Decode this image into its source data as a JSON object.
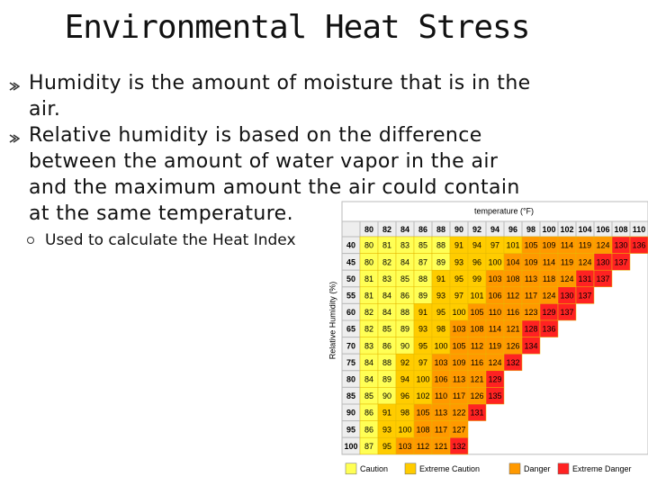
{
  "header": {
    "title": "Environmental Heat Stress"
  },
  "bullets": [
    {
      "text": "Humidity is the amount of moisture that is in the air."
    },
    {
      "text": "Relative humidity is based on the difference between the amount of water vapor in the air and the maximum amount the air could contain at the same temperature.",
      "sub": [
        "Used to calculate the Heat Index"
      ]
    }
  ],
  "table": {
    "column_title": "temperature (°F)",
    "row_title": "Relative Humidity (%)",
    "temperatures": [
      80,
      82,
      84,
      86,
      88,
      90,
      92,
      94,
      96,
      98,
      100,
      102,
      104,
      106,
      108,
      110
    ],
    "rows": [
      {
        "humidity": 40,
        "values": [
          80,
          81,
          83,
          85,
          88,
          91,
          94,
          97,
          101,
          105,
          109,
          114,
          119,
          124,
          130,
          136
        ],
        "colors": [
          "#ff5",
          "#ff5",
          "#ff5",
          "#ff5",
          "#ff5",
          "#fc0",
          "#fc0",
          "#fc0",
          "#fc0",
          "#f90",
          "#f90",
          "#f90",
          "#f90",
          "#f90",
          "#f22",
          "#f22"
        ]
      },
      {
        "humidity": 45,
        "values": [
          80,
          82,
          84,
          87,
          89,
          93,
          96,
          100,
          104,
          109,
          114,
          119,
          124,
          130,
          137
        ],
        "colors": [
          "#ff5",
          "#ff5",
          "#ff5",
          "#ff5",
          "#ff5",
          "#fc0",
          "#fc0",
          "#fc0",
          "#f90",
          "#f90",
          "#f90",
          "#f90",
          "#f90",
          "#f22",
          "#f22"
        ]
      },
      {
        "humidity": 50,
        "values": [
          81,
          83,
          85,
          88,
          91,
          95,
          99,
          103,
          108,
          113,
          118,
          124,
          131,
          137
        ],
        "colors": [
          "#ff5",
          "#ff5",
          "#ff5",
          "#ff5",
          "#fc0",
          "#fc0",
          "#fc0",
          "#f90",
          "#f90",
          "#f90",
          "#f90",
          "#f90",
          "#f22",
          "#f22"
        ]
      },
      {
        "humidity": 55,
        "values": [
          81,
          84,
          86,
          89,
          93,
          97,
          101,
          106,
          112,
          117,
          124,
          130,
          137
        ],
        "colors": [
          "#ff5",
          "#ff5",
          "#ff5",
          "#ff5",
          "#fc0",
          "#fc0",
          "#fc0",
          "#f90",
          "#f90",
          "#f90",
          "#f90",
          "#f22",
          "#f22"
        ]
      },
      {
        "humidity": 60,
        "values": [
          82,
          84,
          88,
          91,
          95,
          100,
          105,
          110,
          116,
          123,
          129,
          137
        ],
        "colors": [
          "#ff5",
          "#ff5",
          "#ff5",
          "#fc0",
          "#fc0",
          "#fc0",
          "#f90",
          "#f90",
          "#f90",
          "#f90",
          "#f22",
          "#f22"
        ]
      },
      {
        "humidity": 65,
        "values": [
          82,
          85,
          89,
          93,
          98,
          103,
          108,
          114,
          121,
          128,
          136
        ],
        "colors": [
          "#ff5",
          "#ff5",
          "#ff5",
          "#fc0",
          "#fc0",
          "#f90",
          "#f90",
          "#f90",
          "#f90",
          "#f22",
          "#f22"
        ]
      },
      {
        "humidity": 70,
        "values": [
          83,
          86,
          90,
          95,
          100,
          105,
          112,
          119,
          126,
          134
        ],
        "colors": [
          "#ff5",
          "#ff5",
          "#ff5",
          "#fc0",
          "#fc0",
          "#f90",
          "#f90",
          "#f90",
          "#f90",
          "#f22"
        ]
      },
      {
        "humidity": 75,
        "values": [
          84,
          88,
          92,
          97,
          103,
          109,
          116,
          124,
          132
        ],
        "colors": [
          "#ff5",
          "#ff5",
          "#fc0",
          "#fc0",
          "#f90",
          "#f90",
          "#f90",
          "#f90",
          "#f22"
        ]
      },
      {
        "humidity": 80,
        "values": [
          84,
          89,
          94,
          100,
          106,
          113,
          121,
          129
        ],
        "colors": [
          "#ff5",
          "#ff5",
          "#fc0",
          "#fc0",
          "#f90",
          "#f90",
          "#f90",
          "#f22"
        ]
      },
      {
        "humidity": 85,
        "values": [
          85,
          90,
          96,
          102,
          110,
          117,
          126,
          135
        ],
        "colors": [
          "#ff5",
          "#ff5",
          "#fc0",
          "#fc0",
          "#f90",
          "#f90",
          "#f90",
          "#f22"
        ]
      },
      {
        "humidity": 90,
        "values": [
          86,
          91,
          98,
          105,
          113,
          122,
          131
        ],
        "colors": [
          "#ff5",
          "#fc0",
          "#fc0",
          "#f90",
          "#f90",
          "#f90",
          "#f22"
        ]
      },
      {
        "humidity": 95,
        "values": [
          86,
          93,
          100,
          108,
          117,
          127
        ],
        "colors": [
          "#ff5",
          "#fc0",
          "#fc0",
          "#f90",
          "#f90",
          "#f90"
        ]
      },
      {
        "humidity": 100,
        "values": [
          87,
          95,
          103,
          112,
          121,
          132
        ],
        "colors": [
          "#ff5",
          "#fc0",
          "#f90",
          "#f90",
          "#f90",
          "#f22"
        ]
      }
    ],
    "legend": [
      {
        "label": "Caution",
        "color": "#ff5"
      },
      {
        "label": "Extreme Caution",
        "color": "#fc0"
      },
      {
        "label": "Danger",
        "color": "#f90"
      },
      {
        "label": "Extreme Danger",
        "color": "#f22"
      }
    ]
  }
}
